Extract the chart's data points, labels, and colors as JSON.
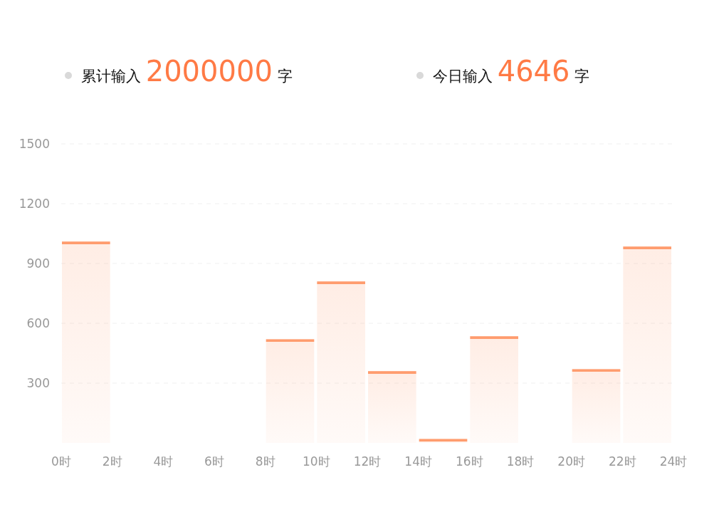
{
  "chart_data": {
    "type": "histogram",
    "annotations": [
      "累计输入 2000000 字",
      "今日输入 4646 字"
    ],
    "bins": [
      0,
      2,
      4,
      6,
      8,
      10,
      12,
      14,
      16,
      18,
      20,
      22,
      24
    ],
    "values": [
      1010,
      0,
      0,
      0,
      520,
      810,
      360,
      20,
      535,
      0,
      370,
      985
    ],
    "color": "#ff9c6e",
    "xlim": [
      0,
      24
    ],
    "xticks": [
      {
        "value": 0,
        "label": "0时"
      },
      {
        "value": 2,
        "label": "2时"
      },
      {
        "value": 4,
        "label": "4时"
      },
      {
        "value": 6,
        "label": "6时"
      },
      {
        "value": 8,
        "label": "8时"
      },
      {
        "value": 10,
        "label": "10时"
      },
      {
        "value": 12,
        "label": "12时"
      },
      {
        "value": 14,
        "label": "14时"
      },
      {
        "value": 16,
        "label": "16时"
      },
      {
        "value": 18,
        "label": "18时"
      },
      {
        "value": 20,
        "label": "20时"
      },
      {
        "value": 22,
        "label": "22时"
      },
      {
        "value": 24,
        "label": "24时"
      }
    ],
    "ylim": [
      0,
      1500
    ],
    "yticks": [
      300,
      600,
      900,
      1200,
      1500
    ],
    "grid": "y"
  }
}
